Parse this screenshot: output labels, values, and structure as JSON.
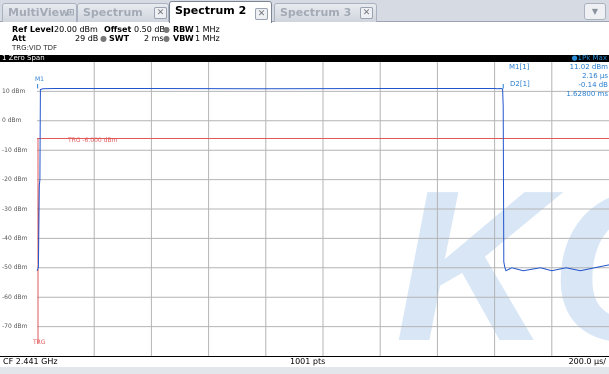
{
  "tabs": [
    {
      "label": "MultiView",
      "active": false
    },
    {
      "label": "Spectrum",
      "active": false
    },
    {
      "label": "Spectrum 2",
      "active": true
    },
    {
      "label": "Spectrum 3",
      "active": false
    }
  ],
  "tab_close_glyph": "✕",
  "tab_grid_glyph": "⊞",
  "dropdown_glyph": "▼",
  "settings": {
    "ref_level_label": "Ref Level",
    "ref_level_value": "20.00 dBm",
    "offset_label": "Offset",
    "offset_value": "0.50 dB",
    "rbw_label": "RBW",
    "rbw_value": "1 MHz",
    "att_label": "Att",
    "att_value": "29 dB",
    "swt_label": "SWT",
    "swt_value": "2 ms",
    "vbw_label": "VBW",
    "vbw_value": "1 MHz",
    "trigger_label": "TRG:VID TDF",
    "sep_glyph": "●"
  },
  "title_bar": {
    "label": "1 Zero Span",
    "trace": "●1Pk Max"
  },
  "y_axis_labels": [
    "10 dBm",
    "0 dBm",
    "-10 dBm",
    "-20 dBm",
    "-30 dBm",
    "-40 dBm",
    "-50 dBm",
    "-60 dBm",
    "-70 dBm"
  ],
  "trigger_line_label": "TRG -6.000 dBm",
  "trigger_marker_label": "TRG",
  "marker_m1_flag": "M1",
  "marker_d2_flag": "D2[1]",
  "marker_table": {
    "m1_name": "M1[1]",
    "m1_level": "11.02 dBm",
    "m1_time": "2.16 µs",
    "d2_level": "-0.14 dB",
    "d2_time": "1.62800 ms"
  },
  "watermark": "KC",
  "colors": {
    "trace": "#2255cc",
    "marker_text": "#2a7fd0",
    "trigger_line": "#e05a5a",
    "grid": "#b4b4b4",
    "watermark": "#d8e6f6"
  },
  "chart_data": {
    "type": "line",
    "xlabel": "",
    "ylabel": "",
    "ylim": [
      -80,
      20
    ],
    "xlim_us": [
      0,
      2000
    ],
    "center_frequency": "CF 2.441 GHz",
    "points": "1001 pts",
    "time_per_div": "200.0 µs/",
    "trigger_level_dbm": -6,
    "series": [
      {
        "x_us": [
          0,
          5,
          8,
          10,
          12,
          20,
          60,
          200,
          400,
          800,
          1200,
          1400,
          1600,
          1610,
          1620,
          1625,
          1628,
          1630,
          1632,
          1636,
          1640,
          1660,
          1700,
          1760,
          1800,
          1850,
          1900,
          1950,
          2000
        ],
        "y_dbm": [
          -51,
          -50,
          -22,
          -20,
          10.6,
          10.9,
          11.0,
          11.0,
          11.0,
          10.9,
          11.0,
          11.0,
          11.0,
          10.9,
          11.0,
          10.9,
          10.8,
          5,
          -48,
          -50,
          -51,
          -50,
          -51,
          -50,
          -51,
          -50,
          -51,
          -50,
          -49
        ]
      }
    ]
  },
  "bottom_bar": {
    "cf": "CF 2.441 GHz",
    "pts": "1001 pts",
    "span": "200.0 µs/"
  }
}
